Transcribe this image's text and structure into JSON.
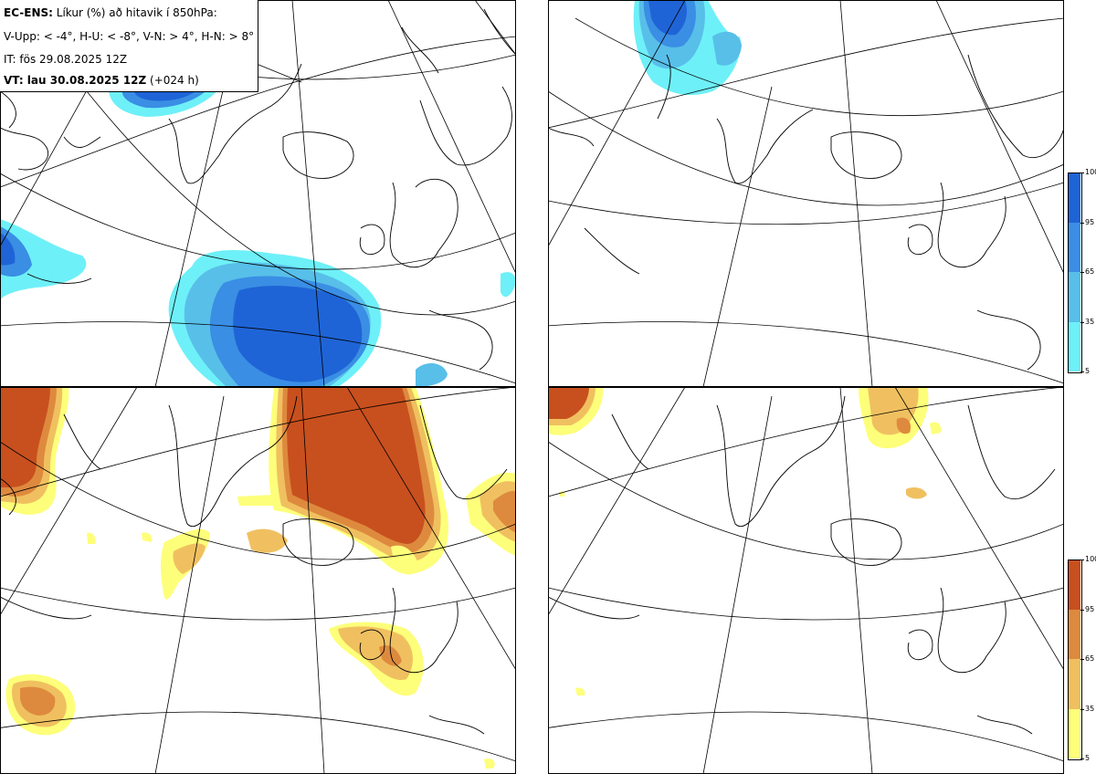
{
  "header": {
    "title_bold": "EC-ENS:",
    "title_rest": " Líkur (%) að hitavik í 850hPa:",
    "criteria": "V-Upp: < -4°, H-U: < -8°, V-N: > 4°, H-N: > 8°",
    "init_time": "IT: fös 29.08.2025 12Z",
    "valid_bold": "VT: lau 30.08.2025 12Z",
    "valid_rest": " (+024 h)"
  },
  "colorbar_cold": {
    "ticks": [
      "100",
      "95",
      "65",
      "35",
      "5"
    ],
    "colors": [
      "#1f64d6",
      "#3a8ee4",
      "#58bfe9",
      "#6ef0f8"
    ]
  },
  "colorbar_warm": {
    "ticks": [
      "100",
      "95",
      "65",
      "35",
      "5"
    ],
    "colors": [
      "#c8501e",
      "#de8a3e",
      "#f0c060",
      "#fdff7a"
    ]
  },
  "panels": [
    {
      "id": "V-Upp",
      "palette": "cold"
    },
    {
      "id": "H-U",
      "palette": "cold"
    },
    {
      "id": "V-N",
      "palette": "warm"
    },
    {
      "id": "H-N",
      "palette": "warm"
    }
  ]
}
